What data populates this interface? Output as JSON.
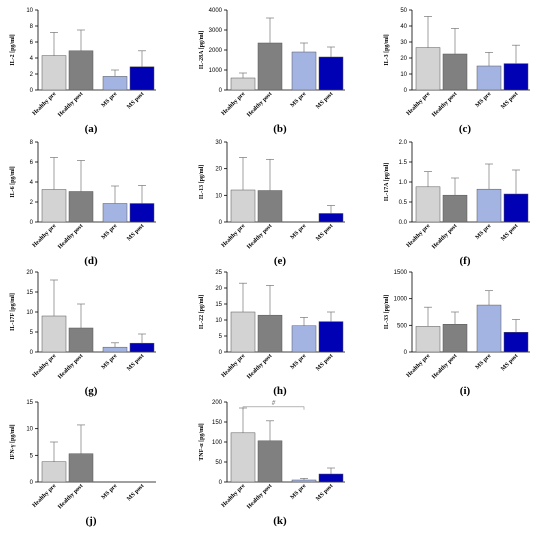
{
  "colors": {
    "Healthy pre": "#d3d3d3",
    "Healthy post": "#808080",
    "MS pre": "#a3b4e3",
    "MS post": "#0000b4"
  },
  "chart_data": [
    {
      "type": "bar",
      "panel": "(a)",
      "ylabel": "IL-2 [pg/ml]",
      "categories": [
        "Healthy pre",
        "Healthy post",
        "MS pre",
        "MS post"
      ],
      "values": [
        4.3,
        4.9,
        1.7,
        2.9
      ],
      "errors": [
        2.9,
        2.6,
        0.8,
        2.0
      ],
      "ylim": [
        0,
        10
      ],
      "yticks": [
        "0",
        "2",
        "4",
        "6",
        "8",
        "10"
      ]
    },
    {
      "type": "bar",
      "panel": "(b)",
      "ylabel": "IL-28A [pg/ml]",
      "categories": [
        "Healthy pre",
        "Healthy post",
        "MS pre",
        "MS post"
      ],
      "values": [
        600,
        2350,
        1900,
        1650
      ],
      "errors": [
        250,
        1250,
        450,
        500
      ],
      "ylim": [
        0,
        4000
      ],
      "yticks": [
        "0",
        "1000",
        "2000",
        "3000",
        "4000"
      ]
    },
    {
      "type": "bar",
      "panel": "(c)",
      "ylabel": "IL-3 [pg/ml]",
      "categories": [
        "Healthy pre",
        "Healthy post",
        "MS pre",
        "MS post"
      ],
      "values": [
        26.5,
        22.5,
        15,
        16.5
      ],
      "errors": [
        19.5,
        16,
        8.5,
        11.5
      ],
      "ylim": [
        0,
        50
      ],
      "yticks": [
        "0",
        "10",
        "20",
        "30",
        "40",
        "50"
      ]
    },
    {
      "type": "bar",
      "panel": "(d)",
      "ylabel": "IL-6 [pg/ml]",
      "categories": [
        "Healthy pre",
        "Healthy post",
        "MS pre",
        "MS post"
      ],
      "values": [
        3.25,
        3.05,
        1.85,
        1.85
      ],
      "errors": [
        3.2,
        3.1,
        1.75,
        1.8
      ],
      "ylim": [
        0,
        8
      ],
      "yticks": [
        "0",
        "2",
        "4",
        "6",
        "8"
      ]
    },
    {
      "type": "bar",
      "panel": "(e)",
      "ylabel": "IL-13 [pg/ml]",
      "categories": [
        "Healthy pre",
        "Healthy post",
        "MS pre",
        "MS post"
      ],
      "values": [
        12,
        11.8,
        0,
        3.2
      ],
      "errors": [
        12.2,
        11.7,
        0,
        3
      ],
      "ylim": [
        0,
        30
      ],
      "yticks": [
        "0",
        "10",
        "20",
        "30"
      ]
    },
    {
      "type": "bar",
      "panel": "(f)",
      "ylabel": "IL-17A [pg/ml]",
      "categories": [
        "Healthy pre",
        "Healthy post",
        "MS pre",
        "MS post"
      ],
      "values": [
        0.88,
        0.67,
        0.82,
        0.7
      ],
      "errors": [
        0.38,
        0.43,
        0.63,
        0.6
      ],
      "ylim": [
        0,
        2.0
      ],
      "yticks": [
        "0.0",
        "0.5",
        "1.0",
        "1.5",
        "2.0"
      ]
    },
    {
      "type": "bar",
      "panel": "(g)",
      "ylabel": "IL-17F [pg/ml]",
      "categories": [
        "Healthy pre",
        "Healthy post",
        "MS pre",
        "MS post"
      ],
      "values": [
        9,
        6,
        1.2,
        2.2
      ],
      "errors": [
        9,
        6,
        1.1,
        2.3
      ],
      "ylim": [
        0,
        20
      ],
      "yticks": [
        "0",
        "5",
        "10",
        "15",
        "20"
      ]
    },
    {
      "type": "bar",
      "panel": "(h)",
      "ylabel": "IL-22 [pg/ml]",
      "categories": [
        "Healthy pre",
        "Healthy post",
        "MS pre",
        "MS post"
      ],
      "values": [
        12.5,
        11.5,
        8.2,
        9.5
      ],
      "errors": [
        9,
        9.3,
        2.6,
        3
      ],
      "ylim": [
        0,
        25
      ],
      "yticks": [
        "0",
        "5",
        "10",
        "15",
        "20",
        "25"
      ]
    },
    {
      "type": "bar",
      "panel": "(i)",
      "ylabel": "IL-33 [pg/ml]",
      "categories": [
        "Healthy pre",
        "Healthy post",
        "MS pre",
        "MS post"
      ],
      "values": [
        480,
        520,
        880,
        370
      ],
      "errors": [
        360,
        230,
        270,
        240
      ],
      "ylim": [
        0,
        1500
      ],
      "yticks": [
        "0",
        "500",
        "1000",
        "1500"
      ]
    },
    {
      "type": "bar",
      "panel": "(j)",
      "ylabel": "IFN-γ [pg/ml]",
      "categories": [
        "Healthy pre",
        "Healthy post",
        "MS pre",
        "MS post"
      ],
      "values": [
        3.8,
        5.3,
        0,
        0
      ],
      "errors": [
        3.7,
        5.4,
        0,
        0
      ],
      "ylim": [
        0,
        15
      ],
      "yticks": [
        "0",
        "5",
        "10",
        "15"
      ]
    },
    {
      "type": "bar",
      "panel": "(k)",
      "ylabel": "TNF-α [pg/ml]",
      "categories": [
        "Healthy pre",
        "Healthy post",
        "MS pre",
        "MS post"
      ],
      "values": [
        123,
        103,
        5,
        20
      ],
      "errors": [
        62,
        50,
        4,
        15
      ],
      "ylim": [
        0,
        200
      ],
      "yticks": [
        "0",
        "50",
        "100",
        "150",
        "200"
      ],
      "annotation": {
        "text": "#",
        "from": 0,
        "to": 2,
        "level": 188
      }
    }
  ]
}
